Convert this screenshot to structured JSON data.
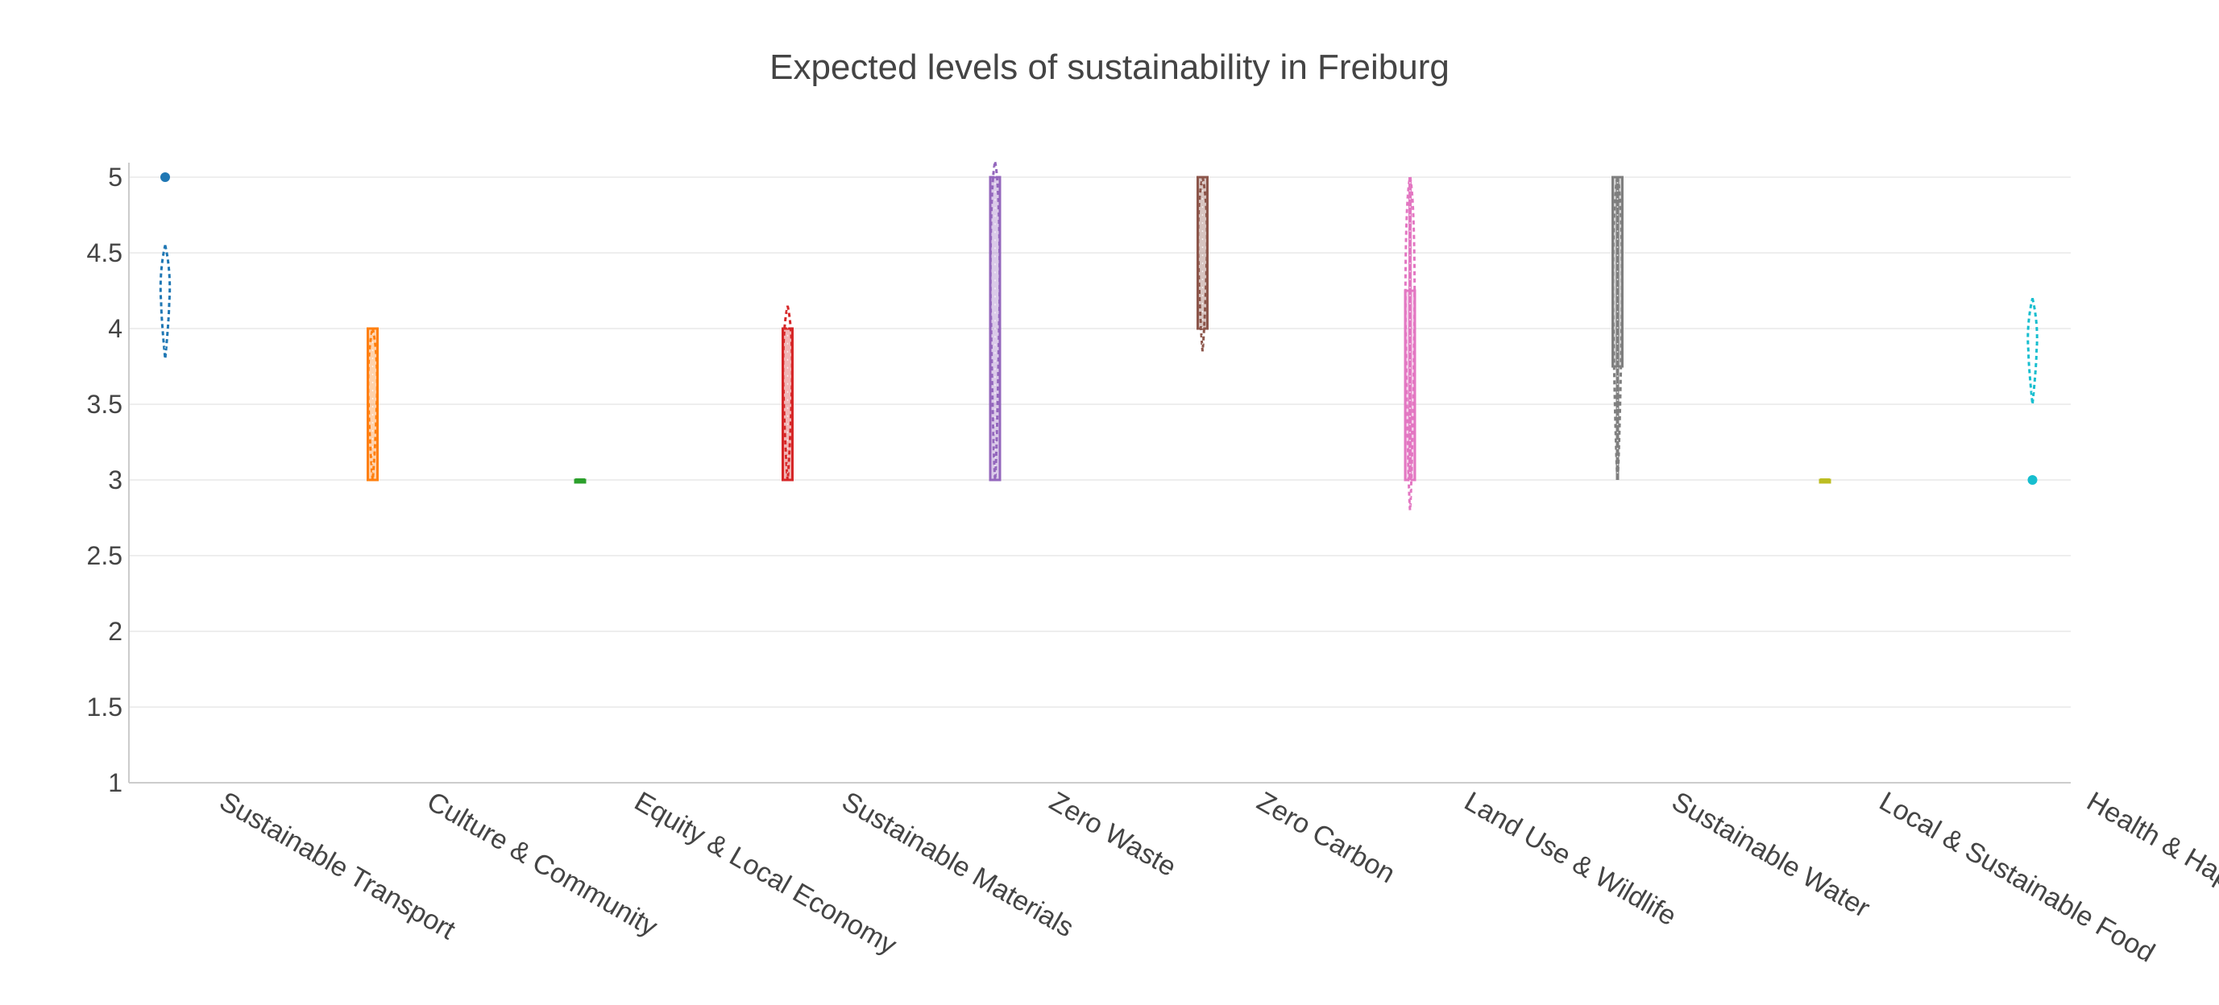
{
  "chart_data": {
    "type": "violin",
    "title": "Expected levels of sustainability in Freiburg",
    "xlabel": "",
    "ylabel": "",
    "ylim": [
      1,
      5
    ],
    "yticks": [
      "1",
      "1.5",
      "2",
      "2.5",
      "3",
      "3.5",
      "4",
      "4.5",
      "5"
    ],
    "grid": true,
    "legend": "none",
    "categories": [
      "Sustainable Transport",
      "Culture & Community",
      "Equity & Local Economy",
      "Sustainable Materials",
      "Zero Waste",
      "Zero Carbon",
      "Land Use & Wildlife",
      "Sustainable Water",
      "Local & Sustainable Food",
      "Health & Happiness"
    ],
    "series": [
      {
        "category": "Sustainable Transport",
        "color": "#1f77b4",
        "violin_range": [
          3.8,
          4.55
        ],
        "box": null,
        "whisker": null,
        "outliers": [
          5
        ]
      },
      {
        "category": "Culture & Community",
        "color": "#ff7f0e",
        "violin_range": [
          3,
          4
        ],
        "box": [
          3,
          4
        ],
        "whisker": null,
        "outliers": []
      },
      {
        "category": "Equity & Local Economy",
        "color": "#2ca02c",
        "violin_range": [
          3,
          3
        ],
        "box": [
          3,
          3
        ],
        "whisker": null,
        "outliers": []
      },
      {
        "category": "Sustainable Materials",
        "color": "#d62728",
        "violin_range": [
          3,
          4.15
        ],
        "box": [
          3,
          4
        ],
        "whisker": null,
        "outliers": []
      },
      {
        "category": "Zero Waste",
        "color": "#9467bd",
        "violin_range": [
          3,
          5.1
        ],
        "box": [
          3,
          5
        ],
        "whisker": null,
        "outliers": []
      },
      {
        "category": "Zero Carbon",
        "color": "#8c564b",
        "violin_range": [
          3.85,
          5
        ],
        "box": [
          4,
          5
        ],
        "whisker": null,
        "outliers": []
      },
      {
        "category": "Land Use & Wildlife",
        "color": "#e377c2",
        "violin_range": [
          2.8,
          5
        ],
        "box": [
          3,
          4.25
        ],
        "whisker": [
          3,
          5
        ],
        "outliers": []
      },
      {
        "category": "Sustainable Water",
        "color": "#7f7f7f",
        "violin_range": [
          3,
          5
        ],
        "box": [
          3.75,
          5
        ],
        "whisker": [
          3,
          5
        ],
        "outliers": []
      },
      {
        "category": "Local & Sustainable Food",
        "color": "#bcbd22",
        "violin_range": [
          3,
          3
        ],
        "box": [
          3,
          3
        ],
        "whisker": null,
        "outliers": []
      },
      {
        "category": "Health & Happiness",
        "color": "#17becf",
        "violin_range": [
          3.5,
          4.2
        ],
        "box": null,
        "whisker": null,
        "outliers": [
          3
        ]
      }
    ]
  }
}
